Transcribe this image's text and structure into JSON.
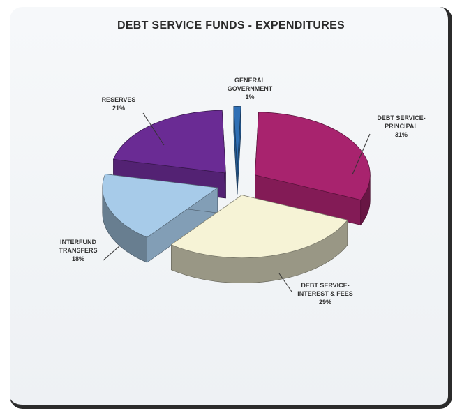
{
  "chart_data": {
    "type": "pie",
    "title": "DEBT SERVICE FUNDS - EXPENDITURES",
    "slices": [
      {
        "label_lines": [
          "GENERAL",
          "GOVERNMENT"
        ],
        "pct_label": "1%",
        "value": 1,
        "color": "#2f6fb5"
      },
      {
        "label_lines": [
          "DEBT SERVICE-",
          "PRINCIPAL"
        ],
        "pct_label": "31%",
        "value": 31,
        "color": "#a8236e"
      },
      {
        "label_lines": [
          "DEBT SERVICE-",
          "INTEREST & FEES"
        ],
        "pct_label": "29%",
        "value": 29,
        "color": "#f6f3d6"
      },
      {
        "label_lines": [
          "INTERFUND",
          "TRANSFERS"
        ],
        "pct_label": "18%",
        "value": 18,
        "color": "#a7cbe9"
      },
      {
        "label_lines": [
          "RESERVES"
        ],
        "pct_label": "21%",
        "value": 21,
        "color": "#6a2b94"
      }
    ]
  }
}
